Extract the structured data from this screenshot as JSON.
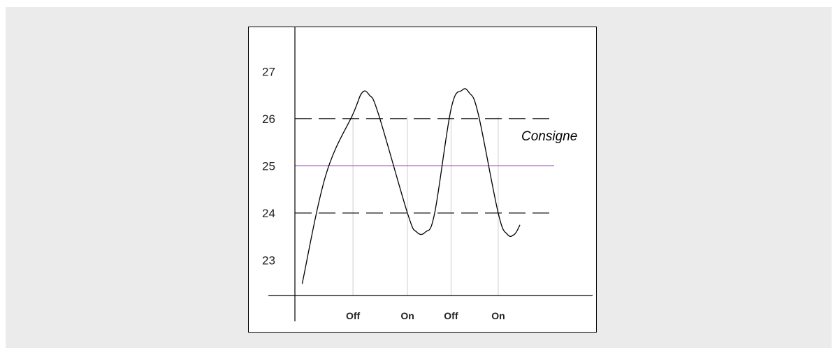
{
  "chart_data": {
    "type": "line",
    "title": "",
    "xlabel": "",
    "ylabel": "",
    "yticks": [
      23,
      24,
      25,
      26,
      27
    ],
    "ylim": [
      22,
      28.1
    ],
    "xlim": [
      0,
      8.2
    ],
    "grid": false,
    "legend": "none",
    "annotation": "Consigne",
    "reference_lines": [
      {
        "y": 26,
        "style": "dashed",
        "color": "#000000"
      },
      {
        "y": 24,
        "style": "dashed",
        "color": "#000000"
      },
      {
        "y": 25,
        "style": "solid",
        "color": "#9b59b6"
      }
    ],
    "switch_events": [
      {
        "x": 1.6,
        "label": "Off"
      },
      {
        "x": 3.1,
        "label": "On"
      },
      {
        "x": 4.3,
        "label": "Off"
      },
      {
        "x": 5.6,
        "label": "On"
      }
    ],
    "series": [
      {
        "x": [
          0.2,
          0.85,
          1.6,
          1.85,
          2.05,
          2.3,
          3.1,
          3.35,
          3.6,
          3.85,
          4.3,
          4.6,
          4.8,
          5.05,
          5.6,
          5.85,
          6.05,
          6.2
        ],
        "values": [
          22.5,
          24.8,
          26.1,
          26.55,
          26.5,
          26.1,
          24.0,
          23.6,
          23.6,
          24.0,
          26.2,
          26.6,
          26.55,
          26.1,
          24.0,
          23.55,
          23.55,
          23.75
        ]
      }
    ]
  }
}
